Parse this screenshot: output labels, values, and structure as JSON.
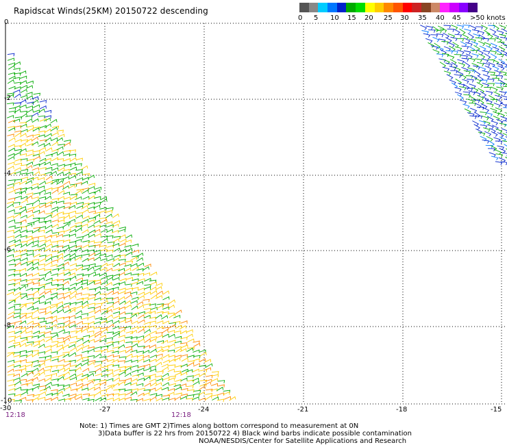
{
  "title": "Rapidscat Winds(25KM) 20150722 descending",
  "legend": {
    "colors": [
      "#555555",
      "#888888",
      "#00ccff",
      "#0077ff",
      "#0022cc",
      "#00aa00",
      "#00dd00",
      "#ffff00",
      "#ffcc00",
      "#ff8800",
      "#ff5500",
      "#ff0000",
      "#cc2222",
      "#884422",
      "#cc8866",
      "#ff22ff",
      "#cc00ff",
      "#8800ff",
      "#440088"
    ],
    "labels": [
      "0",
      "5",
      "10",
      "15",
      "20",
      "25",
      "30",
      "35",
      "40",
      "45",
      ">50 knots"
    ]
  },
  "axes": {
    "lon_ticks": [
      "-30",
      "-27",
      "-24",
      "-21",
      "-18",
      "-15"
    ],
    "lat_ticks": [
      "0",
      "-2",
      "-4",
      "-6",
      "-8",
      "-10"
    ],
    "lon_range": [
      -30,
      -15
    ],
    "lat_range": [
      -10,
      0
    ]
  },
  "times": [
    "12:18",
    "12:18"
  ],
  "notes": [
    "Note: 1) Times are GMT 2)Times along bottom correspond to measurement at 0N",
    "3)Data buffer is 22 hrs from 20150722 4) Black wind barbs indicate possible contamination",
    "NOAA/NESDIS/Center for Satellite Applications and Research"
  ]
}
